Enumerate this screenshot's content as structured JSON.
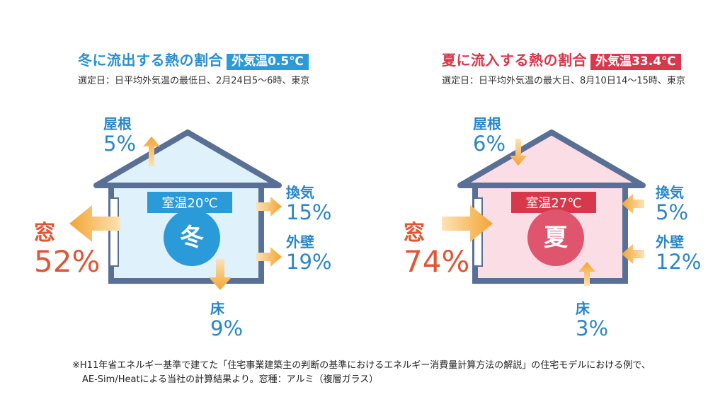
{
  "winter": {
    "title": "冬に流出する熱の割合",
    "badge": "外気温0.5℃",
    "subtitle": "選定日：日平均外気温の最低日、2月24日5〜6時、東京",
    "room_temp": "室温20℃",
    "season_char": "冬",
    "roof": {
      "label": "屋根",
      "value": "5%"
    },
    "ventilation": {
      "label": "換気",
      "value": "15%"
    },
    "wall": {
      "label": "外壁",
      "value": "19%"
    },
    "floor": {
      "label": "床",
      "value": "9%"
    },
    "window": {
      "label": "窓",
      "value": "52%"
    }
  },
  "summer": {
    "title": "夏に流入する熱の割合",
    "badge": "外気温33.4℃",
    "subtitle": "選定日：日平均外気温の最大日、8月10日14〜15時、東京",
    "room_temp": "室温27℃",
    "season_char": "夏",
    "roof": {
      "label": "屋根",
      "value": "6%"
    },
    "ventilation": {
      "label": "換気",
      "value": "5%"
    },
    "wall": {
      "label": "外壁",
      "value": "12%"
    },
    "floor": {
      "label": "床",
      "value": "3%"
    },
    "window": {
      "label": "窓",
      "value": "74%"
    }
  },
  "footnote": {
    "line1": "※H11年省エネルギー基準で建てた「住宅事業建築主の判断の基準におけるエネルギー消費量計算方法の解説」の住宅モデルにおける例で、",
    "line2": "AE-Sim/Heatによる当社の計算結果より。窓種：アルミ（複層ガラス）"
  },
  "colors": {
    "winter_accent": "#2a9ad8",
    "summer_accent": "#d8384b",
    "winter_fill": "#dff1fa",
    "summer_fill": "#fbdde6",
    "house_outline": "#5a6f95",
    "arrow": "#f3a433",
    "percent_blue": "#2a86c8",
    "percent_red": "#e05535"
  }
}
